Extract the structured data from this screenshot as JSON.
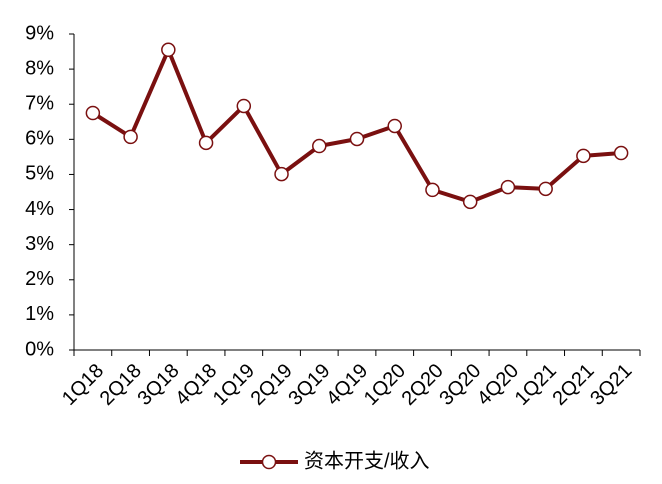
{
  "chart_data": {
    "type": "line",
    "categories": [
      "1Q18",
      "2Q18",
      "3Q18",
      "4Q18",
      "1Q19",
      "2Q19",
      "3Q19",
      "4Q19",
      "1Q20",
      "2Q20",
      "3Q20",
      "4Q20",
      "1Q21",
      "2Q21",
      "3Q21"
    ],
    "series": [
      {
        "name": "资本开支/收入",
        "color": "#7a1010",
        "values": [
          6.75,
          6.07,
          8.55,
          5.9,
          6.95,
          5.01,
          5.81,
          6.01,
          6.38,
          4.56,
          4.22,
          4.64,
          4.59,
          5.53,
          5.61
        ]
      }
    ],
    "ylim": [
      0,
      9
    ],
    "yticks": [
      {
        "value": 0,
        "label": "0%"
      },
      {
        "value": 1,
        "label": "1%"
      },
      {
        "value": 2,
        "label": "2%"
      },
      {
        "value": 3,
        "label": "3%"
      },
      {
        "value": 4,
        "label": "4%"
      },
      {
        "value": 5,
        "label": "5%"
      },
      {
        "value": 6,
        "label": "6%"
      },
      {
        "value": 7,
        "label": "7%"
      },
      {
        "value": 8,
        "label": "8%"
      },
      {
        "value": 9,
        "label": "9%"
      }
    ],
    "grid": false,
    "legend": "bottom"
  }
}
